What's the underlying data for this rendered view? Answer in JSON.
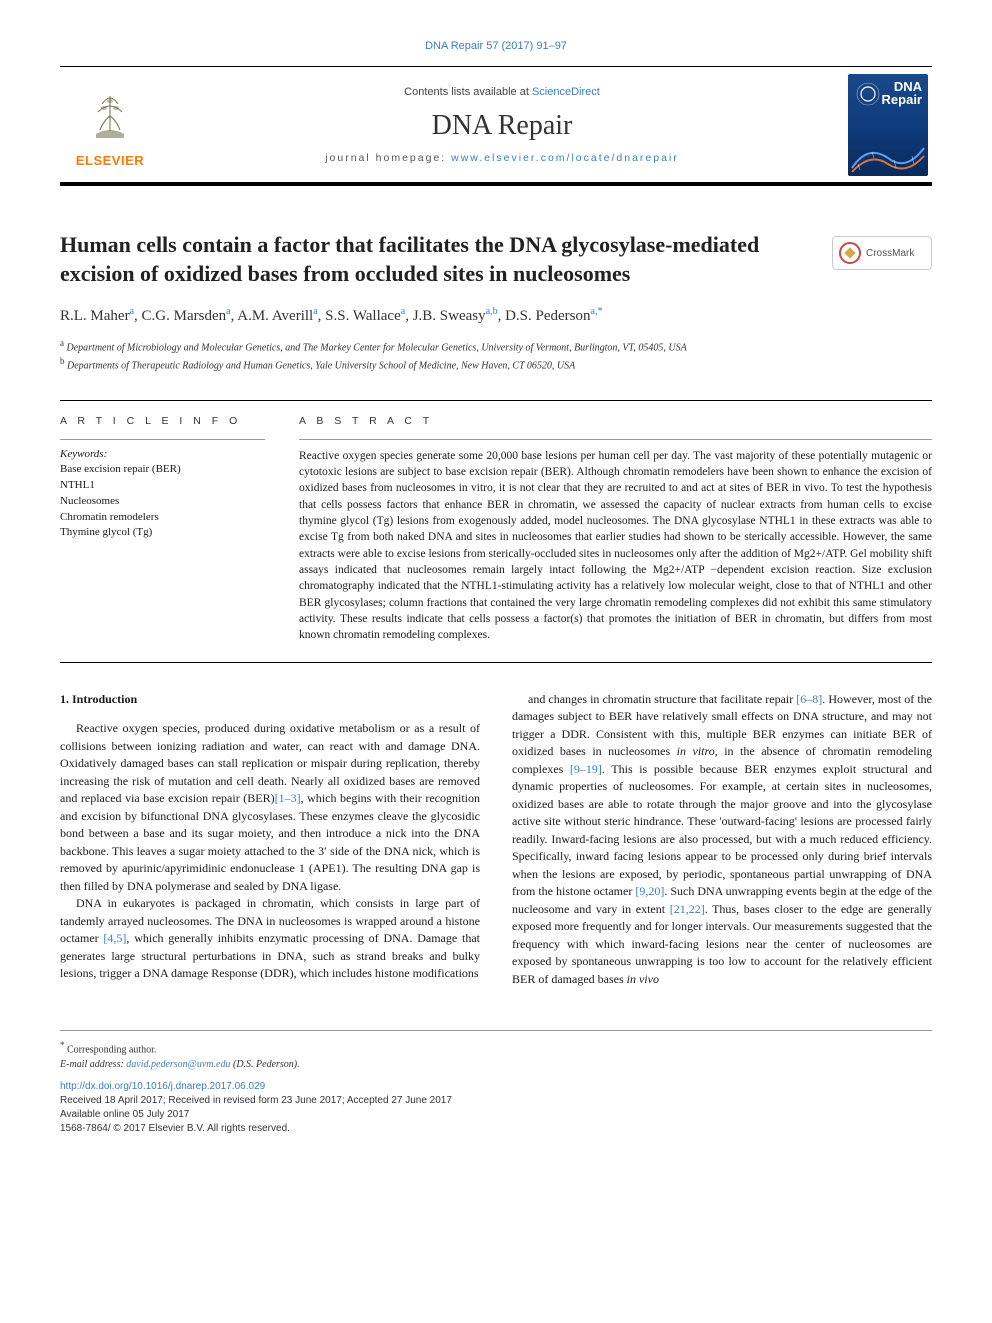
{
  "colors": {
    "link": "#3b7dc0",
    "elsevier_orange": "#ff7a00",
    "text": "#1a1a1a",
    "cover_bg_top": "#1a4a8a",
    "cover_bg_bottom": "#0a2a5a",
    "crossmark_ring": "#c74848",
    "crossmark_inner": "#d4a943"
  },
  "typography": {
    "journal_name_size_pt": 21,
    "title_size_pt": 16.5,
    "authors_size_pt": 11,
    "abstract_size_pt": 8.5,
    "body_size_pt": 9
  },
  "header": {
    "citation_link": "DNA Repair 57 (2017) 91–97",
    "contents_line_prefix": "Contents lists available at ",
    "sciencedirect": "ScienceDirect",
    "journal_name": "DNA Repair",
    "homepage_prefix": "journal homepage: ",
    "homepage_url": "www.elsevier.com/locate/dnarepair",
    "elsevier_label": "ELSEVIER",
    "cover_title_line1": "DNA",
    "cover_title_line2": "Repair"
  },
  "crossmark": {
    "label": "CrossMark"
  },
  "paper": {
    "title": "Human cells contain a factor that facilitates the DNA glycosylase-mediated excision of oxidized bases from occluded sites in nucleosomes",
    "authors_html": "R.L. Maher<sup>a</sup>, C.G. Marsden<sup>a</sup>, A.M. Averill<sup>a</sup>, S.S. Wallace<sup>a</sup>, J.B. Sweasy<sup>a,b</sup>, D.S. Pederson<sup>a,</sup><sup>*</sup>",
    "affil_a": "Department of Microbiology and Molecular Genetics, and The Markey Center for Molecular Genetics, University of Vermont, Burlington, VT, 05405, USA",
    "affil_b": "Departments of Therapeutic Radiology and Human Genetics, Yale University School of Medicine, New Haven, CT 06520, USA"
  },
  "article_info": {
    "label": "A R T I C L E   I N F O",
    "keywords_label": "Keywords:",
    "keywords": [
      "Base excision repair (BER)",
      "NTHL1",
      "Nucleosomes",
      "Chromatin remodelers",
      "Thymine glycol (Tg)"
    ]
  },
  "abstract": {
    "label": "A B S T R A C T",
    "text": "Reactive oxygen species generate some 20,000 base lesions per human cell per day. The vast majority of these potentially mutagenic or cytotoxic lesions are subject to base excision repair (BER). Although chromatin remodelers have been shown to enhance the excision of oxidized bases from nucleosomes in vitro, it is not clear that they are recruited to and act at sites of BER in vivo. To test the hypothesis that cells possess factors that enhance BER in chromatin, we assessed the capacity of nuclear extracts from human cells to excise thymine glycol (Tg) lesions from exogenously added, model nucleosomes. The DNA glycosylase NTHL1 in these extracts was able to excise Tg from both naked DNA and sites in nucleosomes that earlier studies had shown to be sterically accessible. However, the same extracts were able to excise lesions from sterically-occluded sites in nucleosomes only after the addition of Mg2+/ATP. Gel mobility shift assays indicated that nucleosomes remain largely intact following the Mg2+/ATP −dependent excision reaction. Size exclusion chromatography indicated that the NTHL1-stimulating activity has a relatively low molecular weight, close to that of NTHL1 and other BER glycosylases; column fractions that contained the very large chromatin remodeling complexes did not exhibit this same stimulatory activity. These results indicate that cells possess a factor(s) that promotes the initiation of BER in chromatin, but differs from most known chromatin remodeling complexes."
  },
  "body": {
    "intro_heading": "1. Introduction",
    "p1": "Reactive oxygen species, produced during oxidative metabolism or as a result of collisions between ionizing radiation and water, can react with and damage DNA. Oxidatively damaged bases can stall replication or mispair during replication, thereby increasing the risk of mutation and cell death. Nearly all oxidized bases are removed and replaced via base excision repair (BER)[1–3], which begins with their recognition and excision by bifunctional DNA glycosylases. These enzymes cleave the glycosidic bond between a base and its sugar moiety, and then introduce a nick into the DNA backbone. This leaves a sugar moiety attached to the 3′ side of the DNA nick, which is removed by apurinic/apyrimidinic endonuclease 1 (APE1). The resulting DNA gap is then filled by DNA polymerase and sealed by DNA ligase.",
    "p2": "DNA in eukaryotes is packaged in chromatin, which consists in large part of tandemly arrayed nucleosomes. The DNA in nucleosomes is wrapped around a histone octamer [4,5], which generally inhibits enzymatic processing of DNA. Damage that generates large structural perturbations in DNA, such as strand breaks and bulky lesions, trigger a DNA damage Response (DDR), which includes histone modifications",
    "p3": "and changes in chromatin structure that facilitate repair [6–8]. However, most of the damages subject to BER have relatively small effects on DNA structure, and may not trigger a DDR. Consistent with this, multiple BER enzymes can initiate BER of oxidized bases in nucleosomes in vitro, in the absence of chromatin remodeling complexes [9–19]. This is possible because BER enzymes exploit structural and dynamic properties of nucleosomes. For example, at certain sites in nucleosomes, oxidized bases are able to rotate through the major groove and into the glycosylase active site without steric hindrance. These 'outward-facing' lesions are processed fairly readily. Inward-facing lesions are also processed, but with a much reduced efficiency. Specifically, inward facing lesions appear to be processed only during brief intervals when the lesions are exposed, by periodic, spontaneous partial unwrapping of DNA from the histone octamer [9,20]. Such DNA unwrapping events begin at the edge of the nucleosome and vary in extent [21,22]. Thus, bases closer to the edge are generally exposed more frequently and for longer intervals. Our measurements suggested that the frequency with which inward-facing lesions near the center of nucleosomes are exposed by spontaneous unwrapping is too low to account for the relatively efficient BER of damaged bases in vivo"
  },
  "footer": {
    "corresp": "Corresponding author.",
    "email_label": "E-mail address: ",
    "email": "david.pederson@uvm.edu",
    "email_suffix": " (D.S. Pederson).",
    "doi": "http://dx.doi.org/10.1016/j.dnarep.2017.06.029",
    "dates": "Received 18 April 2017; Received in revised form 23 June 2017; Accepted 27 June 2017",
    "available": "Available online 05 July 2017",
    "copyright": "1568-7864/ © 2017 Elsevier B.V. All rights reserved."
  }
}
